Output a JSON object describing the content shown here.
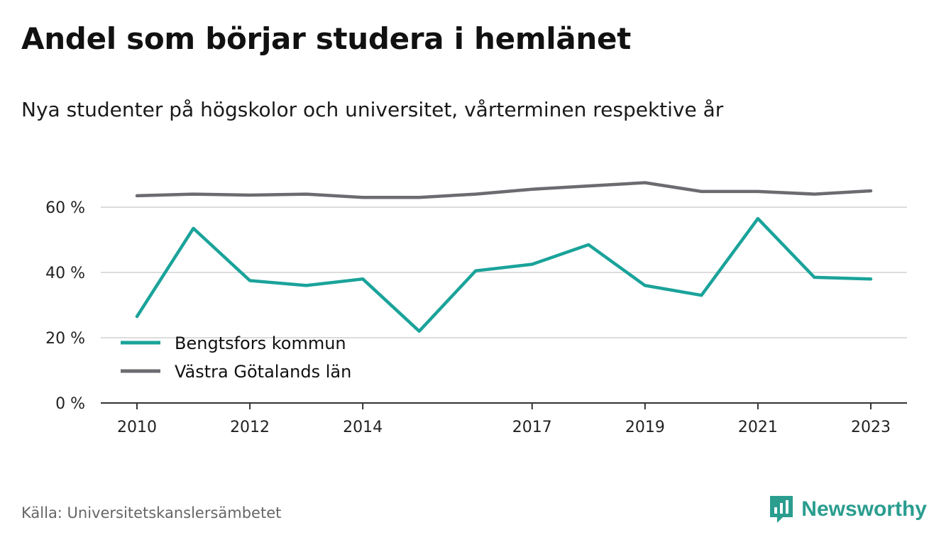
{
  "title": "Andel som börjar studera i hemlänet",
  "subtitle": "Nya studenter på högskolor och universitet, vårterminen respektive år",
  "source": "Källa: Universitetskanslersämbetet",
  "brand": {
    "name": "Newsworthy",
    "icon": "newsworthy-logo-icon",
    "color": "#2a9d8f"
  },
  "chart_data": {
    "type": "line",
    "x": [
      2010,
      2011,
      2012,
      2013,
      2014,
      2015,
      2016,
      2017,
      2018,
      2019,
      2020,
      2021,
      2022,
      2023
    ],
    "x_ticks": [
      "2010",
      "2012",
      "2014",
      "2017",
      "2019",
      "2021",
      "2023"
    ],
    "y_ticks": [
      "0 %",
      "20 %",
      "40 %",
      "60 %"
    ],
    "y_tick_values": [
      0,
      20,
      40,
      60
    ],
    "ylim": [
      0,
      70
    ],
    "grid": true,
    "legend_position": "bottom-left",
    "series": [
      {
        "name": "Bengtsfors kommun",
        "color": "#1aa39a",
        "values": [
          26.5,
          53.5,
          37.5,
          36,
          38,
          22,
          40.5,
          42.5,
          48.5,
          36,
          33,
          56.5,
          38.5,
          38
        ]
      },
      {
        "name": "Västra Götalands län",
        "color": "#6b6b70",
        "values": [
          63.5,
          64,
          63.7,
          64,
          63,
          63,
          64,
          65.5,
          66.5,
          67.5,
          64.8,
          64.8,
          64,
          65
        ]
      }
    ]
  }
}
